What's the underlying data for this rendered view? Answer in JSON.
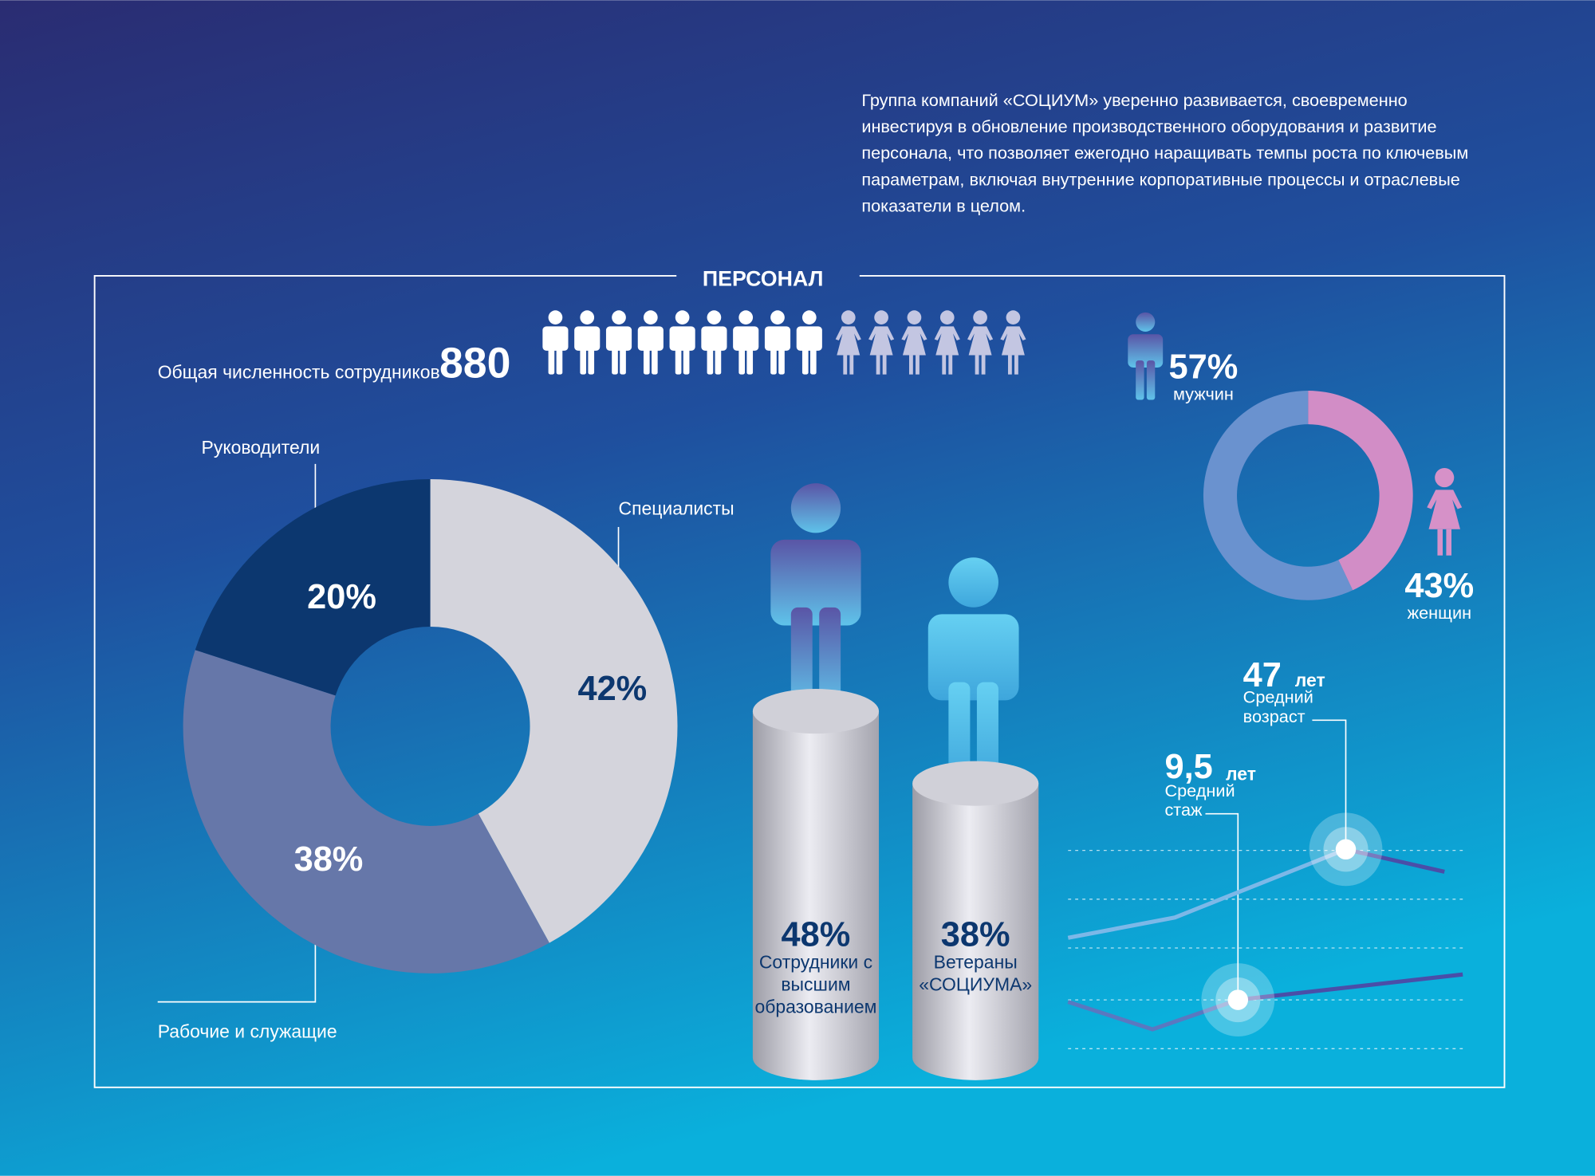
{
  "intro": [
    "Группа компаний «СОЦИУМ» уверенно развивается, своевременно",
    "инвестируя в обновление производственного оборудования и развитие",
    "персонала, что позволяет ежегодно наращивать темпы роста по ключевым",
    "параметрам, включая внутренние корпоративные процессы и отраслевые",
    "показатели в целом."
  ],
  "section_title": "ПЕРСОНАЛ",
  "headcount": {
    "label": "Общая численность сотрудников",
    "value": 880
  },
  "chart_data": [
    {
      "type": "donut",
      "categories": [
        "Специалисты",
        "Рабочие и служащие",
        "Руководители"
      ],
      "values": [
        42,
        38,
        20
      ],
      "value_labels": [
        "42%",
        "38%",
        "20%"
      ],
      "colors": [
        "#d4d4dc",
        "#6677a9",
        "#0c376f"
      ]
    },
    {
      "type": "donut",
      "categories": [
        "мужчин",
        "женщин"
      ],
      "values": [
        57,
        43
      ],
      "value_labels": [
        "57%",
        "43%"
      ],
      "colors": [
        "#6a92cf",
        "#d28dc6"
      ]
    },
    {
      "type": "bar",
      "categories": [
        "Сотрудники с высшим образованием",
        "Ветераны «СОЦИУМА»"
      ],
      "values": [
        48,
        38
      ],
      "value_labels": [
        "48%",
        "38%"
      ],
      "color": "#d0d0d8"
    }
  ],
  "stats": [
    {
      "value": "47",
      "unit": "лет",
      "label": "Средний возраст"
    },
    {
      "value": "9,5",
      "unit": "лет",
      "label": "Средний стаж"
    }
  ]
}
